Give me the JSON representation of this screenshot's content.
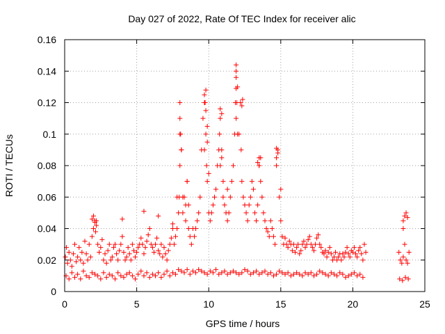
{
  "chart_data": {
    "type": "scatter",
    "title": "Day 027 of 2022, Rate Of TEC Index for receiver alic",
    "xlabel": "GPS time / hours",
    "ylabel": "ROTI / TECUs",
    "xlim": [
      0,
      25
    ],
    "ylim": [
      0,
      0.16
    ],
    "x_ticks": [
      0,
      5,
      10,
      15,
      20,
      25
    ],
    "y_ticks": [
      0,
      0.02,
      0.04,
      0.06,
      0.08,
      0.1,
      0.12,
      0.14,
      0.16
    ],
    "x_tick_labels": [
      "0",
      "5",
      "10",
      "15",
      "20",
      "25"
    ],
    "y_tick_labels": [
      "0",
      "0.02",
      "0.04",
      "0.06",
      "0.08",
      "0.1",
      "0.12",
      "0.14",
      "0.16"
    ],
    "grid": true,
    "marker": "plus",
    "color": "#ff0000",
    "series": [
      {
        "x": [
          0.05,
          0.12,
          0.2,
          0.3,
          0.4,
          0.5,
          0.6,
          0.7,
          0.8,
          0.9,
          1.0,
          1.1,
          1.2,
          1.3,
          1.4,
          1.5,
          1.6,
          1.7,
          1.8,
          1.9,
          2.0,
          2.1,
          2.15,
          2.2,
          2.3,
          2.4,
          2.5,
          2.6,
          2.7,
          2.8,
          2.9,
          3.0,
          3.1,
          3.2,
          3.3,
          3.4,
          3.5,
          3.6,
          3.7,
          3.8,
          3.9,
          4.0,
          4.1,
          4.2,
          4.3,
          4.4,
          4.5,
          4.6,
          4.7,
          4.8,
          4.9,
          5.0,
          5.1,
          5.2,
          5.3,
          5.4,
          5.5,
          5.6,
          5.7,
          5.8,
          5.9,
          6.0,
          6.1,
          6.2,
          6.3,
          6.4,
          6.5,
          6.6,
          6.7,
          6.8,
          6.9,
          7.0,
          7.1,
          7.2,
          7.3,
          7.4,
          7.5,
          7.6,
          7.7,
          7.8,
          7.9,
          7.95,
          8.0,
          8.05,
          8.1,
          8.2,
          8.3,
          8.4,
          8.5,
          8.6,
          8.7,
          8.8,
          8.9,
          9.0,
          9.1,
          9.2,
          9.3,
          9.4,
          9.5,
          9.6,
          9.7,
          9.75,
          9.8,
          9.85,
          9.9,
          10.0,
          10.1,
          10.2,
          10.3,
          10.4,
          10.5,
          10.6,
          10.7,
          10.75,
          10.8,
          10.9,
          11.0,
          11.1,
          11.2,
          11.3,
          11.4,
          11.5,
          11.6,
          11.7,
          11.8,
          11.85,
          11.9,
          12.0,
          12.1,
          12.2,
          12.25,
          12.3,
          12.4,
          12.5,
          12.6,
          12.7,
          12.8,
          12.9,
          13.0,
          13.1,
          13.2,
          13.3,
          13.4,
          13.5,
          13.6,
          13.7,
          13.8,
          13.9,
          14.0,
          14.1,
          14.2,
          14.3,
          14.4,
          14.5,
          14.6,
          14.7,
          14.8,
          14.9,
          15.0,
          15.1,
          15.2,
          15.3,
          15.4,
          15.5,
          15.6,
          15.7,
          15.8,
          15.9,
          16.0,
          16.1,
          16.2,
          16.3,
          16.4,
          16.5,
          16.6,
          16.7,
          16.8,
          16.9,
          17.0,
          17.1,
          17.2,
          17.3,
          17.4,
          17.5,
          17.6,
          17.7,
          17.8,
          17.9,
          18.0,
          18.1,
          18.2,
          18.3,
          18.4,
          18.5,
          18.6,
          18.7,
          18.8,
          18.9,
          19.0,
          19.1,
          19.2,
          19.3,
          19.4,
          19.5,
          19.6,
          19.7,
          19.8,
          19.9,
          20.0,
          20.1,
          20.2,
          20.3,
          20.4,
          20.5,
          20.6,
          20.7,
          20.8,
          20.9,
          23.2,
          23.3,
          23.4,
          23.5,
          23.6,
          23.7,
          23.8,
          23.9,
          0.1,
          0.3,
          0.5,
          0.7,
          0.9,
          1.1,
          1.3,
          1.5,
          1.7,
          1.9,
          2.1,
          2.3,
          2.5,
          2.7,
          2.9,
          3.1,
          3.3,
          3.5,
          3.7,
          3.9,
          4.1,
          4.3,
          4.5,
          4.7,
          4.9,
          5.1,
          5.3,
          5.5,
          5.7,
          5.9,
          6.1,
          6.3,
          6.5,
          6.7,
          6.9,
          7.1,
          7.3,
          7.5,
          7.7,
          7.9,
          8.1,
          8.3,
          8.5,
          8.7,
          8.9,
          9.1,
          9.3,
          9.5,
          9.7,
          9.9,
          10.1,
          10.3,
          10.5,
          10.7,
          10.9,
          11.1,
          11.3,
          11.5,
          11.7,
          11.9,
          12.1,
          12.3,
          12.5,
          12.7,
          12.9,
          13.1,
          13.3,
          13.5,
          13.7,
          13.9,
          14.1,
          14.3,
          14.5,
          14.7,
          14.9,
          15.1,
          15.3,
          15.5,
          15.7,
          15.9,
          16.1,
          16.3,
          16.5,
          16.7,
          16.9,
          17.1,
          17.3,
          17.5,
          17.7,
          17.9,
          18.1,
          18.3,
          18.5,
          18.7,
          18.9,
          19.1,
          19.3,
          19.5,
          19.7,
          19.9,
          20.1,
          20.3,
          20.5,
          20.7,
          23.25,
          23.45,
          23.65,
          23.85,
          1.9,
          2.0,
          2.1,
          2.2,
          4.0,
          5.5,
          6.5,
          7.5,
          7.8,
          8.0,
          8.0,
          8.0,
          8.1,
          8.2,
          8.4,
          8.5,
          8.6,
          9.7,
          9.8,
          9.8,
          9.9,
          9.9,
          9.7,
          10.0,
          10.8,
          10.9,
          10.9,
          10.8,
          11.0,
          11.3,
          11.9,
          11.9,
          11.9,
          11.95,
          12.3,
          12.35,
          12.0,
          11.9,
          13.4,
          13.5,
          13.6,
          13.5,
          14.7,
          14.8,
          14.7,
          15.0,
          23.5,
          23.6,
          23.7,
          23.8,
          23.5
        ],
        "y": [
          0.022,
          0.028,
          0.018,
          0.025,
          0.02,
          0.016,
          0.024,
          0.03,
          0.019,
          0.022,
          0.028,
          0.02,
          0.025,
          0.018,
          0.032,
          0.024,
          0.02,
          0.03,
          0.022,
          0.035,
          0.04,
          0.045,
          0.038,
          0.042,
          0.03,
          0.025,
          0.028,
          0.033,
          0.02,
          0.024,
          0.018,
          0.026,
          0.03,
          0.02,
          0.022,
          0.028,
          0.03,
          0.024,
          0.02,
          0.026,
          0.03,
          0.035,
          0.025,
          0.02,
          0.022,
          0.028,
          0.024,
          0.02,
          0.03,
          0.026,
          0.022,
          0.025,
          0.028,
          0.03,
          0.034,
          0.03,
          0.024,
          0.028,
          0.032,
          0.036,
          0.04,
          0.03,
          0.028,
          0.025,
          0.03,
          0.034,
          0.026,
          0.024,
          0.03,
          0.022,
          0.028,
          0.024,
          0.02,
          0.026,
          0.03,
          0.034,
          0.04,
          0.03,
          0.035,
          0.04,
          0.05,
          0.06,
          0.08,
          0.1,
          0.09,
          0.05,
          0.06,
          0.045,
          0.07,
          0.04,
          0.035,
          0.03,
          0.04,
          0.035,
          0.04,
          0.045,
          0.05,
          0.06,
          0.09,
          0.11,
          0.125,
          0.12,
          0.1,
          0.08,
          0.07,
          0.05,
          0.045,
          0.05,
          0.055,
          0.06,
          0.065,
          0.08,
          0.09,
          0.1,
          0.11,
          0.085,
          0.06,
          0.055,
          0.05,
          0.045,
          0.05,
          0.06,
          0.07,
          0.08,
          0.1,
          0.12,
          0.14,
          0.13,
          0.1,
          0.12,
          0.09,
          0.07,
          0.06,
          0.055,
          0.05,
          0.045,
          0.055,
          0.06,
          0.07,
          0.065,
          0.05,
          0.045,
          0.055,
          0.08,
          0.085,
          0.06,
          0.05,
          0.045,
          0.04,
          0.038,
          0.035,
          0.045,
          0.04,
          0.035,
          0.03,
          0.08,
          0.09,
          0.06,
          0.045,
          0.035,
          0.03,
          0.034,
          0.03,
          0.028,
          0.032,
          0.03,
          0.026,
          0.03,
          0.025,
          0.028,
          0.03,
          0.024,
          0.026,
          0.03,
          0.032,
          0.028,
          0.03,
          0.033,
          0.035,
          0.03,
          0.028,
          0.026,
          0.03,
          0.034,
          0.036,
          0.03,
          0.028,
          0.025,
          0.024,
          0.026,
          0.022,
          0.025,
          0.028,
          0.024,
          0.02,
          0.022,
          0.025,
          0.02,
          0.022,
          0.024,
          0.02,
          0.024,
          0.022,
          0.025,
          0.028,
          0.024,
          0.022,
          0.026,
          0.025,
          0.028,
          0.024,
          0.022,
          0.026,
          0.028,
          0.024,
          0.02,
          0.03,
          0.025,
          0.025,
          0.02,
          0.018,
          0.022,
          0.03,
          0.02,
          0.018,
          0.025,
          0.01,
          0.008,
          0.012,
          0.009,
          0.011,
          0.008,
          0.013,
          0.01,
          0.009,
          0.012,
          0.011,
          0.01,
          0.008,
          0.012,
          0.009,
          0.011,
          0.01,
          0.008,
          0.012,
          0.01,
          0.009,
          0.011,
          0.012,
          0.01,
          0.008,
          0.011,
          0.013,
          0.01,
          0.012,
          0.009,
          0.011,
          0.01,
          0.012,
          0.009,
          0.011,
          0.013,
          0.01,
          0.012,
          0.011,
          0.014,
          0.013,
          0.012,
          0.014,
          0.011,
          0.013,
          0.012,
          0.014,
          0.013,
          0.012,
          0.011,
          0.013,
          0.012,
          0.014,
          0.011,
          0.012,
          0.013,
          0.011,
          0.012,
          0.013,
          0.012,
          0.011,
          0.012,
          0.014,
          0.013,
          0.011,
          0.012,
          0.013,
          0.011,
          0.012,
          0.013,
          0.011,
          0.012,
          0.01,
          0.011,
          0.013,
          0.012,
          0.011,
          0.012,
          0.01,
          0.011,
          0.012,
          0.011,
          0.01,
          0.012,
          0.011,
          0.012,
          0.01,
          0.011,
          0.013,
          0.012,
          0.011,
          0.01,
          0.012,
          0.011,
          0.01,
          0.012,
          0.011,
          0.009,
          0.01,
          0.011,
          0.012,
          0.01,
          0.011,
          0.009,
          0.008,
          0.007,
          0.009,
          0.008,
          0.046,
          0.048,
          0.044,
          0.045,
          0.046,
          0.051,
          0.048,
          0.043,
          0.06,
          0.12,
          0.11,
          0.1,
          0.09,
          0.06,
          0.055,
          0.07,
          0.055,
          0.12,
          0.128,
          0.115,
          0.105,
          0.095,
          0.09,
          0.075,
          0.116,
          0.113,
          0.09,
          0.08,
          0.07,
          0.065,
          0.144,
          0.136,
          0.129,
          0.12,
          0.118,
          0.122,
          0.1,
          0.11,
          0.082,
          0.085,
          0.07,
          0.08,
          0.091,
          0.088,
          0.085,
          0.065,
          0.045,
          0.048,
          0.05,
          0.047,
          0.04
        ]
      }
    ]
  }
}
